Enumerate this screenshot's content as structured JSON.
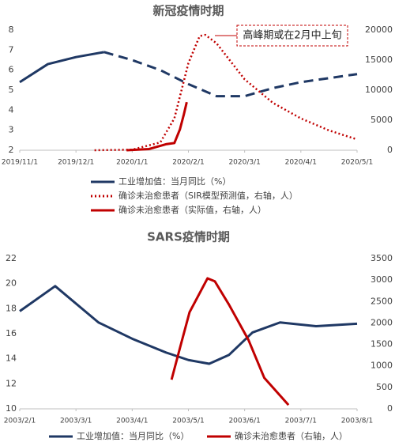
{
  "chart_data": [
    {
      "type": "line",
      "title": "新冠疫情时期",
      "xlim": [
        0,
        6
      ],
      "xticks": [
        {
          "value": 0,
          "label": "2019/11/1"
        },
        {
          "value": 1,
          "label": "2019/12/1"
        },
        {
          "value": 2,
          "label": "2020/1/1"
        },
        {
          "value": 3,
          "label": "2020/2/1"
        },
        {
          "value": 4,
          "label": "2020/3/1"
        },
        {
          "value": 5,
          "label": "2020/4/1"
        },
        {
          "value": 6,
          "label": "2020/5/1"
        }
      ],
      "ylim": [
        2,
        8
      ],
      "yticks": [
        2,
        3,
        4,
        5,
        6,
        7,
        8
      ],
      "y2lim": [
        0,
        20000
      ],
      "y2ticks": [
        0,
        5000,
        10000,
        15000,
        20000
      ],
      "legend": "bottom-vertical",
      "annotation": "高峰期或在2月中上旬",
      "series": [
        {
          "name": "工业增加值：当月同比（%）",
          "color": "#1f3864",
          "style": "solid",
          "dashed_after": 1.5,
          "x": [
            0,
            0.5,
            1,
            1.5,
            2,
            2.5,
            3,
            3.5,
            4,
            4.5,
            5,
            5.5,
            6
          ],
          "values": [
            5.4,
            6.3,
            6.65,
            6.9,
            6.5,
            6.0,
            5.3,
            4.7,
            4.7,
            5.1,
            5.4,
            5.6,
            5.8
          ]
        },
        {
          "name": "确诊未治愈患者（SIR模型预测值，右轴，人）",
          "color": "#c00000",
          "style": "dotted",
          "axis": "y2",
          "x": [
            1.33,
            2,
            2.5,
            2.75,
            3,
            3.2,
            3.3,
            3.5,
            4,
            4.5,
            5,
            5.5,
            6
          ],
          "values": [
            0,
            100,
            1300,
            5300,
            14500,
            19000,
            19200,
            17800,
            11800,
            7900,
            5300,
            3300,
            1800
          ]
        },
        {
          "name": "确诊未治愈患者（实际值，右轴，人）",
          "color": "#c00000",
          "style": "solid",
          "axis": "y2",
          "x": [
            1.9,
            2.3,
            2.6,
            2.75,
            2.85,
            2.92,
            2.97
          ],
          "values": [
            0,
            200,
            1000,
            1200,
            3500,
            6000,
            8000
          ]
        }
      ]
    },
    {
      "type": "line",
      "title": "SARS疫情时期",
      "xlim": [
        0,
        6
      ],
      "xticks": [
        {
          "value": 0,
          "label": "2003/2/1"
        },
        {
          "value": 1,
          "label": "2003/3/1"
        },
        {
          "value": 2,
          "label": "2003/4/1"
        },
        {
          "value": 3,
          "label": "2003/5/1"
        },
        {
          "value": 4,
          "label": "2003/6/1"
        },
        {
          "value": 5,
          "label": "2003/7/1"
        },
        {
          "value": 6,
          "label": "2003/8/1"
        }
      ],
      "ylim": [
        10,
        22
      ],
      "yticks": [
        10,
        12,
        14,
        16,
        18,
        20,
        22
      ],
      "y2lim": [
        0,
        3500
      ],
      "y2ticks": [
        0,
        500,
        1000,
        1500,
        2000,
        2500,
        3000,
        3500
      ],
      "legend": "bottom-horizontal",
      "series": [
        {
          "name": "工业增加值：当月同比（%）",
          "color": "#1f3864",
          "style": "solid",
          "x": [
            0,
            0.63,
            1.4,
            2,
            2.6,
            3,
            3.37,
            3.72,
            4.14,
            4.63,
            5.27,
            6
          ],
          "values": [
            17.8,
            19.8,
            16.9,
            15.6,
            14.5,
            13.9,
            13.6,
            14.3,
            16.1,
            16.9,
            16.6,
            16.8
          ]
        },
        {
          "name": "确诊未治愈患者（右轴，人）",
          "color": "#c00000",
          "style": "solid",
          "axis": "y2",
          "x": [
            2.7,
            2.85,
            3.02,
            3.34,
            3.47,
            3.72,
            4.07,
            4.35,
            4.78
          ],
          "values": [
            680,
            1420,
            2250,
            3040,
            2970,
            2430,
            1600,
            720,
            90
          ]
        }
      ]
    }
  ]
}
